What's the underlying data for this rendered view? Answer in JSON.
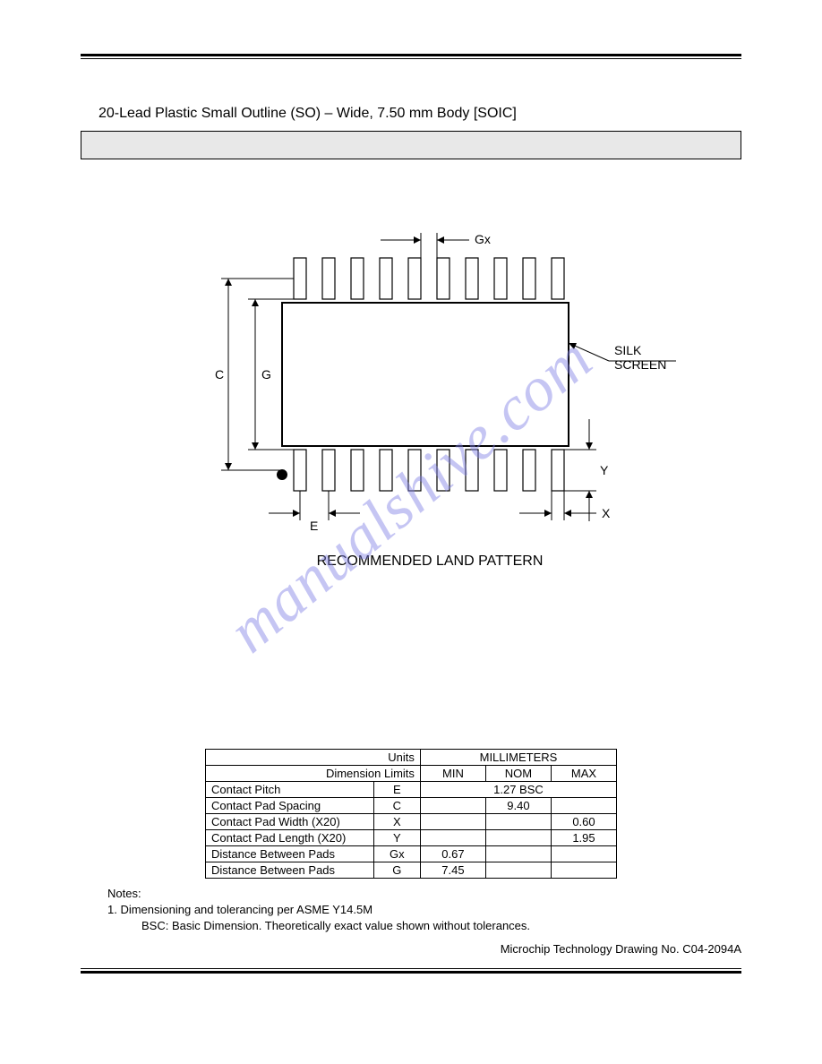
{
  "title": "20-Lead Plastic Small Outline (SO) – Wide, 7.50 mm Body  [SOIC]",
  "watermark": "manualshive.com",
  "diagram": {
    "caption": "RECOMMENDED LAND PATTERN",
    "silk_label": "SILK\nSCREEN",
    "dim_labels": {
      "Gx": "Gx",
      "C": "C",
      "G": "G",
      "E": "E",
      "X": "X",
      "Y": "Y"
    },
    "pad_count_per_side": 10,
    "body_color": "#ffffff",
    "line_color": "#000000",
    "pad_width": 14,
    "pad_height": 46,
    "pad_pitch": 32,
    "body_w": 320,
    "body_h": 160,
    "pin1_r": 6
  },
  "table": {
    "units_label": "Units",
    "units_value": "MILLIMETERS",
    "dimlim_label": "Dimension Limits",
    "cols": [
      "MIN",
      "NOM",
      "MAX"
    ],
    "rows": [
      {
        "name": "Contact Pitch",
        "sym": "E",
        "vals": [
          "1.27 BSC"
        ],
        "span": 3
      },
      {
        "name": "Contact Pad Spacing",
        "sym": "C",
        "vals": [
          "",
          "9.40",
          ""
        ]
      },
      {
        "name": "Contact Pad Width (X20)",
        "sym": "X",
        "vals": [
          "",
          "",
          "0.60"
        ]
      },
      {
        "name": "Contact Pad Length (X20)",
        "sym": "Y",
        "vals": [
          "",
          "",
          "1.95"
        ]
      },
      {
        "name": "Distance Between Pads",
        "sym": "Gx",
        "vals": [
          "0.67",
          "",
          ""
        ]
      },
      {
        "name": "Distance Between Pads",
        "sym": "G",
        "vals": [
          "7.45",
          "",
          ""
        ]
      }
    ]
  },
  "notes": {
    "heading": "Notes:",
    "line1": "1. Dimensioning and tolerancing per ASME Y14.5M",
    "line2": "BSC: Basic Dimension. Theoretically exact value shown without tolerances."
  },
  "drawing_no": "Microchip Technology Drawing No. C04-2094A"
}
